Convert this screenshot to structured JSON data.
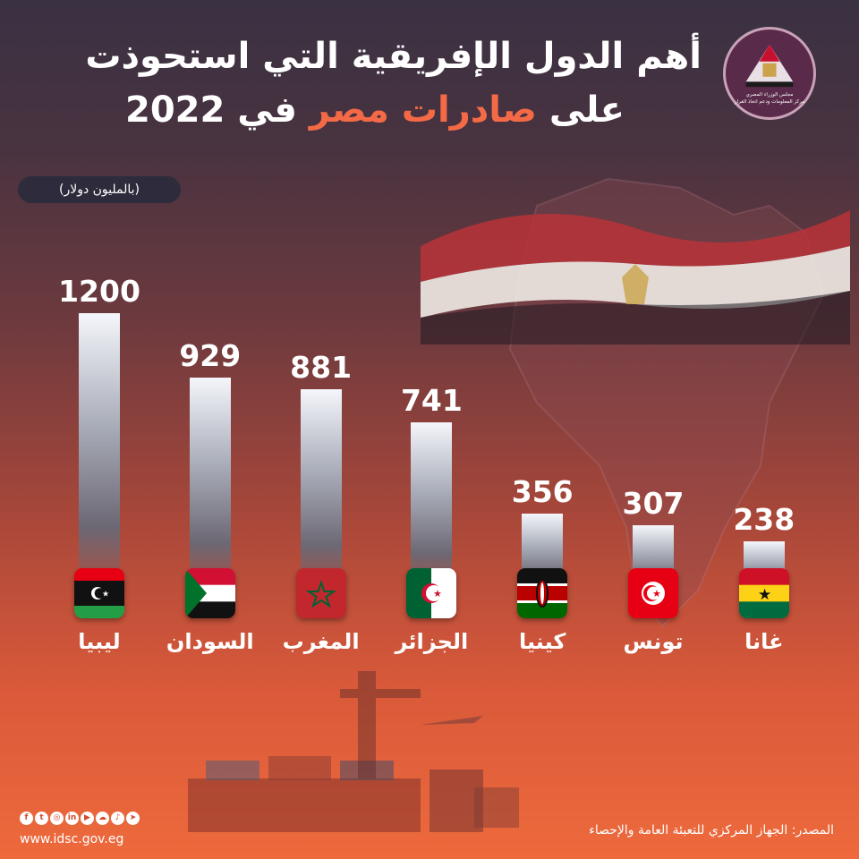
{
  "header": {
    "title_line1": "أهم الدول الإفريقية التي استحوذت",
    "title_line2_pre": "على ",
    "title_line2_accent": "صادرات مصر",
    "title_line2_post": " في 2022",
    "unit": "(بالمليون دولار)"
  },
  "logo": {
    "line1": "مجلس الوزراء المصري",
    "line2": "مركز المعلومات ودعم اتخاذ القرار"
  },
  "colors": {
    "accent": "#f46a46",
    "background_top": "#3a3142",
    "background_bottom": "#ee6a3c"
  },
  "chart_data": {
    "type": "bar",
    "categories": [
      "ليبيا",
      "السودان",
      "المغرب",
      "الجزائر",
      "كينيا",
      "تونس",
      "غانا"
    ],
    "values": [
      1200,
      929,
      881,
      741,
      356,
      307,
      238
    ],
    "value_labels": [
      "1200",
      "929",
      "881",
      "741",
      "356",
      "307",
      "238"
    ],
    "flags": [
      "libya-flag",
      "sudan-flag",
      "morocco-flag",
      "algeria-flag",
      "kenya-flag",
      "tunisia-flag",
      "ghana-flag"
    ],
    "ylim": [
      0,
      1200
    ],
    "grid": false,
    "legend": "none"
  },
  "footer": {
    "website": "www.idsc.gov.eg",
    "source": "المصدر: الجهاز المركزي للتعبئة العامة والإحصاء",
    "social_icons": [
      "facebook-icon",
      "twitter-icon",
      "instagram-icon",
      "linkedin-icon",
      "youtube-icon",
      "soundcloud-icon",
      "tiktok-icon",
      "telegram-icon"
    ]
  }
}
